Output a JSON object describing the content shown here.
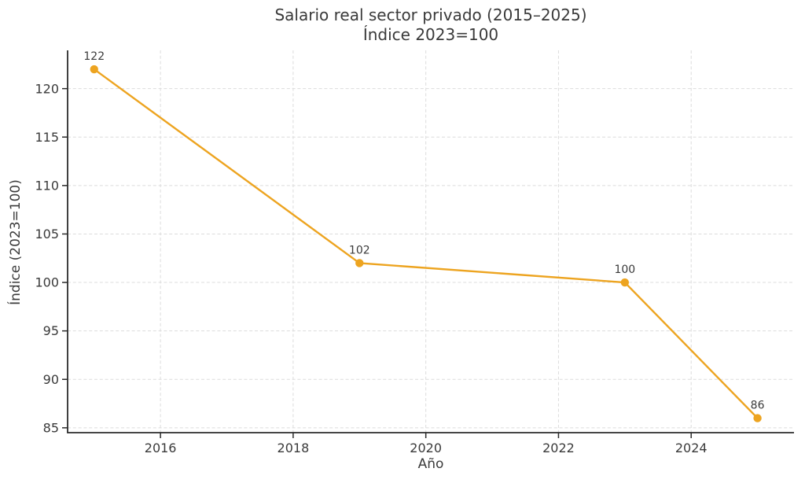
{
  "figure": {
    "title_line1": "Salario real sector privado (2015–2025)",
    "title_line2": "Índice 2023=100"
  },
  "chart_data": {
    "type": "line",
    "title": "Salario real sector privado (2015–2025)",
    "subtitle": "Índice 2023=100",
    "xlabel": "Año",
    "ylabel": "Índice (2023=100)",
    "x": [
      2015,
      2019,
      2023,
      2025
    ],
    "y": [
      122,
      102,
      100,
      86
    ],
    "point_labels": [
      "122",
      "102",
      "100",
      "86"
    ],
    "xlim": [
      2014.6,
      2025.55
    ],
    "ylim": [
      84.5,
      123.95
    ],
    "xticks": [
      2016,
      2018,
      2020,
      2022,
      2024
    ],
    "yticks": [
      85,
      90,
      95,
      100,
      105,
      110,
      115,
      120
    ],
    "grid": "on",
    "grid_style": "dashed",
    "legend_position": "none",
    "colors": {
      "line": "#EDA420",
      "marker": "#EDA420",
      "grid": "#dcdcdc",
      "spine": "#2b2b2b",
      "text": "#3a3a3a"
    }
  }
}
